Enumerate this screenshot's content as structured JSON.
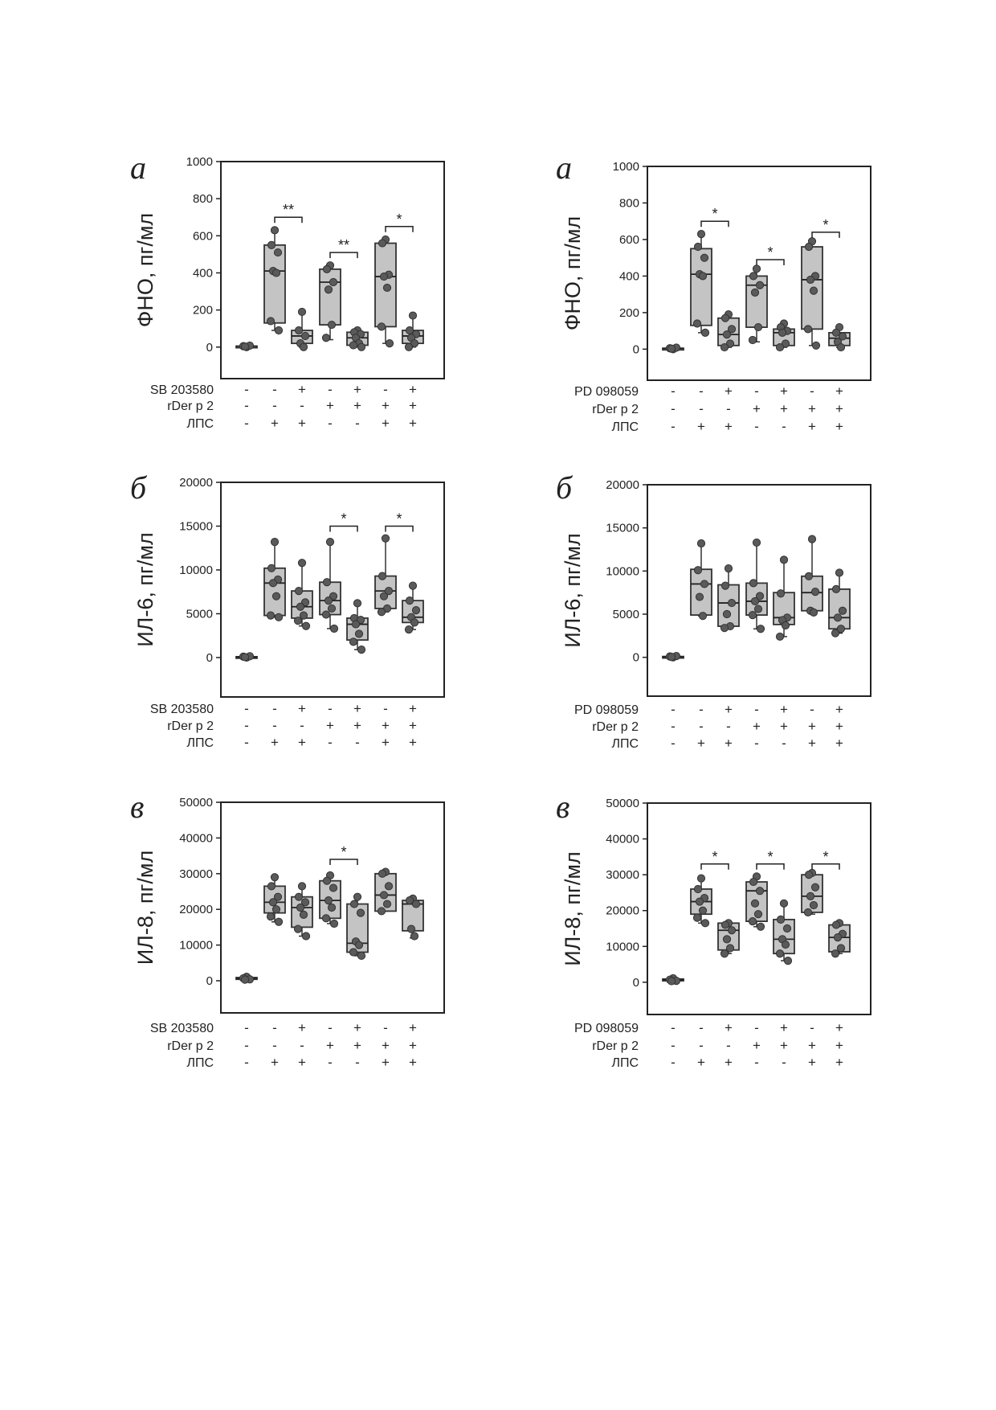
{
  "chart_data": [
    {
      "type": "box",
      "panel_label": "а",
      "ylabel": "ФНО, пг/мл",
      "yticks": [
        0,
        200,
        400,
        600,
        800,
        1000
      ],
      "ylim": [
        -170,
        1000
      ],
      "factors": [
        {
          "name": "SB 203580",
          "signs": [
            "-",
            "-",
            "+",
            "-",
            "+",
            "-",
            "+"
          ]
        },
        {
          "name": "rDer p 2",
          "signs": [
            "-",
            "-",
            "-",
            "+",
            "+",
            "+",
            "+"
          ]
        },
        {
          "name": "ЛПС",
          "signs": [
            "-",
            "+",
            "+",
            "-",
            "-",
            "+",
            "+"
          ]
        }
      ],
      "groups": [
        {
          "min": 0,
          "q1": 0,
          "median": 5,
          "q3": 5,
          "max": 10,
          "points": [
            0,
            5,
            8,
            3
          ]
        },
        {
          "min": 90,
          "q1": 130,
          "median": 410,
          "q3": 550,
          "max": 630,
          "points": [
            630,
            550,
            510,
            410,
            400,
            140,
            90
          ]
        },
        {
          "min": 0,
          "q1": 20,
          "median": 60,
          "q3": 90,
          "max": 190,
          "points": [
            190,
            90,
            60,
            20,
            0
          ]
        },
        {
          "min": 40,
          "q1": 120,
          "median": 350,
          "q3": 420,
          "max": 440,
          "points": [
            440,
            420,
            350,
            310,
            120,
            50
          ]
        },
        {
          "min": 0,
          "q1": 10,
          "median": 50,
          "q3": 80,
          "max": 90,
          "points": [
            90,
            80,
            70,
            50,
            20,
            10,
            0
          ]
        },
        {
          "min": 20,
          "q1": 110,
          "median": 380,
          "q3": 560,
          "max": 580,
          "points": [
            580,
            560,
            390,
            380,
            320,
            110,
            20
          ]
        },
        {
          "min": 0,
          "q1": 20,
          "median": 60,
          "q3": 90,
          "max": 170,
          "points": [
            170,
            90,
            70,
            50,
            20,
            0
          ]
        }
      ],
      "brackets": [
        {
          "from": 1,
          "to": 2,
          "y": 700,
          "label": "**"
        },
        {
          "from": 3,
          "to": 4,
          "y": 510,
          "label": "**"
        },
        {
          "from": 5,
          "to": 6,
          "y": 650,
          "label": "*"
        }
      ]
    },
    {
      "type": "box",
      "panel_label": "а",
      "ylabel": "ФНО, пг/мл",
      "yticks": [
        0,
        200,
        400,
        600,
        800,
        1000
      ],
      "ylim": [
        -170,
        1000
      ],
      "factors": [
        {
          "name": "PD 098059",
          "signs": [
            "-",
            "-",
            "+",
            "-",
            "+",
            "-",
            "+"
          ]
        },
        {
          "name": "rDer p 2",
          "signs": [
            "-",
            "-",
            "-",
            "+",
            "+",
            "+",
            "+"
          ]
        },
        {
          "name": "ЛПС",
          "signs": [
            "-",
            "+",
            "+",
            "-",
            "-",
            "+",
            "+"
          ]
        }
      ],
      "groups": [
        {
          "min": 0,
          "q1": 0,
          "median": 5,
          "q3": 5,
          "max": 10,
          "points": [
            0,
            5,
            8,
            3
          ]
        },
        {
          "min": 90,
          "q1": 130,
          "median": 410,
          "q3": 550,
          "max": 630,
          "points": [
            630,
            560,
            500,
            410,
            400,
            140,
            90
          ]
        },
        {
          "min": 10,
          "q1": 20,
          "median": 80,
          "q3": 170,
          "max": 190,
          "points": [
            190,
            170,
            110,
            80,
            30,
            10
          ]
        },
        {
          "min": 40,
          "q1": 120,
          "median": 350,
          "q3": 400,
          "max": 440,
          "points": [
            440,
            400,
            350,
            310,
            120,
            50
          ]
        },
        {
          "min": 10,
          "q1": 20,
          "median": 90,
          "q3": 110,
          "max": 140,
          "points": [
            140,
            120,
            100,
            90,
            30,
            10
          ]
        },
        {
          "min": 20,
          "q1": 110,
          "median": 380,
          "q3": 560,
          "max": 590,
          "points": [
            590,
            560,
            400,
            380,
            320,
            110,
            20
          ]
        },
        {
          "min": 10,
          "q1": 20,
          "median": 60,
          "q3": 90,
          "max": 120,
          "points": [
            120,
            90,
            70,
            40,
            10
          ]
        }
      ],
      "brackets": [
        {
          "from": 1,
          "to": 2,
          "y": 700,
          "label": "*"
        },
        {
          "from": 3,
          "to": 4,
          "y": 490,
          "label": "*"
        },
        {
          "from": 5,
          "to": 6,
          "y": 640,
          "label": "*"
        }
      ]
    },
    {
      "type": "box",
      "panel_label": "б",
      "ylabel": "ИЛ-6, пг/мл",
      "yticks": [
        0,
        5000,
        10000,
        15000,
        20000
      ],
      "ylim": [
        -4500,
        20000
      ],
      "factors": [
        {
          "name": "SB 203580",
          "signs": [
            "-",
            "-",
            "+",
            "-",
            "+",
            "-",
            "+"
          ]
        },
        {
          "name": "rDer p 2",
          "signs": [
            "-",
            "-",
            "-",
            "+",
            "+",
            "+",
            "+"
          ]
        },
        {
          "name": "ЛПС",
          "signs": [
            "-",
            "+",
            "+",
            "-",
            "-",
            "+",
            "+"
          ]
        }
      ],
      "groups": [
        {
          "min": 0,
          "q1": 0,
          "median": 50,
          "q3": 100,
          "max": 150,
          "points": [
            0,
            100,
            150,
            50
          ]
        },
        {
          "min": 4600,
          "q1": 4800,
          "median": 8500,
          "q3": 10200,
          "max": 13200,
          "points": [
            13200,
            10200,
            8900,
            8500,
            7000,
            4800,
            4600
          ]
        },
        {
          "min": 3600,
          "q1": 4500,
          "median": 5800,
          "q3": 7600,
          "max": 10800,
          "points": [
            10800,
            7600,
            6300,
            5800,
            4800,
            4200,
            3600
          ]
        },
        {
          "min": 3300,
          "q1": 4900,
          "median": 6500,
          "q3": 8600,
          "max": 13200,
          "points": [
            13200,
            8600,
            7000,
            6500,
            5600,
            4900,
            3300
          ]
        },
        {
          "min": 900,
          "q1": 2000,
          "median": 3800,
          "q3": 4500,
          "max": 6200,
          "points": [
            6200,
            4500,
            4300,
            3800,
            2700,
            1800,
            900
          ]
        },
        {
          "min": 5200,
          "q1": 5600,
          "median": 7600,
          "q3": 9300,
          "max": 13600,
          "points": [
            13600,
            9300,
            7600,
            7000,
            5600,
            5200
          ]
        },
        {
          "min": 3200,
          "q1": 4000,
          "median": 4600,
          "q3": 6500,
          "max": 8200,
          "points": [
            8200,
            6500,
            5400,
            4600,
            4000,
            3200
          ]
        }
      ],
      "brackets": [
        {
          "from": 3,
          "to": 4,
          "y": 15000,
          "label": "*"
        },
        {
          "from": 5,
          "to": 6,
          "y": 15000,
          "label": "*"
        }
      ]
    },
    {
      "type": "box",
      "panel_label": "б",
      "ylabel": "ИЛ-6, пг/мл",
      "yticks": [
        0,
        5000,
        10000,
        15000,
        20000
      ],
      "ylim": [
        -4500,
        20000
      ],
      "factors": [
        {
          "name": "PD 098059",
          "signs": [
            "-",
            "-",
            "+",
            "-",
            "+",
            "-",
            "+"
          ]
        },
        {
          "name": "rDer p 2",
          "signs": [
            "-",
            "-",
            "-",
            "+",
            "+",
            "+",
            "+"
          ]
        },
        {
          "name": "ЛПС",
          "signs": [
            "-",
            "+",
            "+",
            "-",
            "-",
            "+",
            "+"
          ]
        }
      ],
      "groups": [
        {
          "min": 0,
          "q1": 0,
          "median": 50,
          "q3": 100,
          "max": 150,
          "points": [
            0,
            100,
            150,
            50
          ]
        },
        {
          "min": 4800,
          "q1": 4900,
          "median": 8500,
          "q3": 10200,
          "max": 13200,
          "points": [
            13200,
            10100,
            8500,
            7000,
            4800
          ]
        },
        {
          "min": 3400,
          "q1": 3600,
          "median": 6300,
          "q3": 8400,
          "max": 10300,
          "points": [
            10300,
            8300,
            6300,
            5000,
            3600,
            3400
          ]
        },
        {
          "min": 3300,
          "q1": 4900,
          "median": 6500,
          "q3": 8600,
          "max": 13300,
          "points": [
            13300,
            8600,
            7100,
            6500,
            5600,
            4900,
            3300
          ]
        },
        {
          "min": 2400,
          "q1": 3800,
          "median": 4600,
          "q3": 7500,
          "max": 11300,
          "points": [
            11300,
            7400,
            4600,
            4300,
            3700,
            2400
          ]
        },
        {
          "min": 5200,
          "q1": 5400,
          "median": 7500,
          "q3": 9400,
          "max": 13700,
          "points": [
            13700,
            9400,
            7600,
            5400,
            5200
          ]
        },
        {
          "min": 2800,
          "q1": 3300,
          "median": 4600,
          "q3": 7900,
          "max": 9800,
          "points": [
            9800,
            7900,
            5400,
            4600,
            3300,
            2800
          ]
        }
      ],
      "brackets": []
    },
    {
      "type": "box",
      "panel_label": "в",
      "ylabel": "ИЛ-8, пг/мл",
      "yticks": [
        0,
        10000,
        20000,
        30000,
        40000,
        50000
      ],
      "ylim": [
        -9000,
        50000
      ],
      "factors": [
        {
          "name": "SB 203580",
          "signs": [
            "-",
            "-",
            "+",
            "-",
            "+",
            "-",
            "+"
          ]
        },
        {
          "name": "rDer p 2",
          "signs": [
            "-",
            "-",
            "-",
            "+",
            "+",
            "+",
            "+"
          ]
        },
        {
          "name": "ЛПС",
          "signs": [
            "-",
            "+",
            "+",
            "-",
            "-",
            "+",
            "+"
          ]
        }
      ],
      "groups": [
        {
          "min": 300,
          "q1": 400,
          "median": 700,
          "q3": 900,
          "max": 1100,
          "points": [
            1100,
            700,
            400,
            300
          ]
        },
        {
          "min": 16500,
          "q1": 19000,
          "median": 22000,
          "q3": 26500,
          "max": 29000,
          "points": [
            29000,
            26500,
            23500,
            22000,
            20000,
            18000,
            16500
          ]
        },
        {
          "min": 12500,
          "q1": 15000,
          "median": 20500,
          "q3": 23500,
          "max": 26500,
          "points": [
            26500,
            23500,
            22000,
            20500,
            18500,
            14500,
            12500
          ]
        },
        {
          "min": 16000,
          "q1": 17500,
          "median": 22500,
          "q3": 28000,
          "max": 29500,
          "points": [
            29500,
            28000,
            26000,
            22500,
            20500,
            17500,
            16000
          ]
        },
        {
          "min": 7000,
          "q1": 8000,
          "median": 10500,
          "q3": 21500,
          "max": 23500,
          "points": [
            23500,
            21500,
            19000,
            11000,
            10000,
            8000,
            7000
          ]
        },
        {
          "min": 19500,
          "q1": 19500,
          "median": 24000,
          "q3": 30000,
          "max": 30500,
          "points": [
            30500,
            30000,
            26500,
            24000,
            21500,
            19500
          ]
        },
        {
          "min": 12000,
          "q1": 14000,
          "median": 21500,
          "q3": 22500,
          "max": 23000,
          "points": [
            23000,
            22500,
            21500,
            14500,
            12500
          ]
        }
      ],
      "brackets": [
        {
          "from": 3,
          "to": 4,
          "y": 34000,
          "label": "*"
        }
      ]
    },
    {
      "type": "box",
      "panel_label": "в",
      "ylabel": "ИЛ-8, пг/мл",
      "yticks": [
        0,
        10000,
        20000,
        30000,
        40000,
        50000
      ],
      "ylim": [
        -9000,
        50000
      ],
      "factors": [
        {
          "name": "PD 098059",
          "signs": [
            "-",
            "-",
            "+",
            "-",
            "+",
            "-",
            "+"
          ]
        },
        {
          "name": "rDer p 2",
          "signs": [
            "-",
            "-",
            "-",
            "+",
            "+",
            "+",
            "+"
          ]
        },
        {
          "name": "ЛПС",
          "signs": [
            "-",
            "+",
            "+",
            "-",
            "-",
            "+",
            "+"
          ]
        }
      ],
      "groups": [
        {
          "min": 300,
          "q1": 400,
          "median": 700,
          "q3": 900,
          "max": 1100,
          "points": [
            1100,
            700,
            400,
            300
          ]
        },
        {
          "min": 16500,
          "q1": 19000,
          "median": 22500,
          "q3": 26000,
          "max": 29000,
          "points": [
            29000,
            26000,
            23500,
            22500,
            20000,
            18000,
            16500
          ]
        },
        {
          "min": 8000,
          "q1": 9000,
          "median": 14500,
          "q3": 16500,
          "max": 16500,
          "points": [
            16500,
            16000,
            14500,
            12000,
            9500,
            8000
          ]
        },
        {
          "min": 15500,
          "q1": 17000,
          "median": 25500,
          "q3": 28000,
          "max": 29500,
          "points": [
            29500,
            28000,
            25500,
            22000,
            19000,
            17000,
            15500
          ]
        },
        {
          "min": 6000,
          "q1": 8000,
          "median": 12000,
          "q3": 17500,
          "max": 22000,
          "points": [
            22000,
            17500,
            15000,
            12000,
            10500,
            8000,
            6000
          ]
        },
        {
          "min": 19000,
          "q1": 19500,
          "median": 24000,
          "q3": 30000,
          "max": 30500,
          "points": [
            30500,
            30000,
            26500,
            24000,
            21500,
            19500
          ]
        },
        {
          "min": 8000,
          "q1": 8500,
          "median": 12500,
          "q3": 16000,
          "max": 16500,
          "points": [
            16500,
            16000,
            13500,
            12500,
            9500,
            8000
          ]
        }
      ],
      "brackets": [
        {
          "from": 1,
          "to": 2,
          "y": 33000,
          "label": "*"
        },
        {
          "from": 3,
          "to": 4,
          "y": 33000,
          "label": "*"
        },
        {
          "from": 5,
          "to": 6,
          "y": 33000,
          "label": "*"
        }
      ]
    }
  ]
}
